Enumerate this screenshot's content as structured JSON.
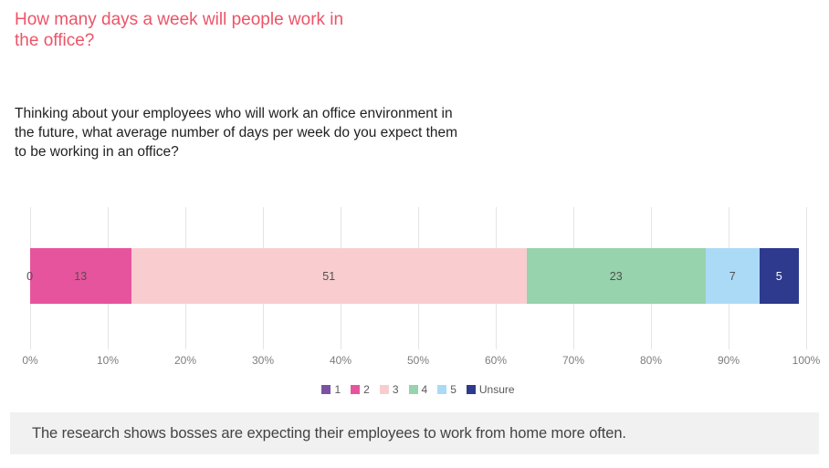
{
  "title": "How many days a week will people work in the office?",
  "question": "Thinking about your employees who will work an office environment in the future, what average number of days per week do you expect them to be working in an office?",
  "caption": "The research shows bosses are expecting their employees to work from home more often.",
  "colors": {
    "title_accent": "#ec5468",
    "gridline": "#e4e4e4",
    "axis_text": "#7d7d7d",
    "caption_bg": "#f1f1f1"
  },
  "chart_data": {
    "type": "bar",
    "orientation": "horizontal-stacked",
    "categories": [
      "1",
      "2",
      "3",
      "4",
      "5",
      "Unsure"
    ],
    "values": [
      0,
      13,
      51,
      23,
      7,
      5
    ],
    "series_colors": [
      "#7b52a3",
      "#e7549e",
      "#f9cdd0",
      "#97d3ac",
      "#abdaf6",
      "#2d3a8d"
    ],
    "label_colors": [
      "#4f4f4f",
      "#4f4f4f",
      "#4f4f4f",
      "#4f4f4f",
      "#4f4f4f",
      "#ffffff"
    ],
    "title": "How many days a week will people work in the office?",
    "xlabel": "",
    "ylabel": "",
    "xlim": [
      0,
      100
    ],
    "x_ticks": [
      "0%",
      "10%",
      "20%",
      "30%",
      "40%",
      "50%",
      "60%",
      "70%",
      "80%",
      "90%",
      "100%"
    ],
    "grid": "vertical",
    "legend_position": "bottom-center",
    "legend": [
      "1",
      "2",
      "3",
      "4",
      "5",
      "Unsure"
    ]
  }
}
